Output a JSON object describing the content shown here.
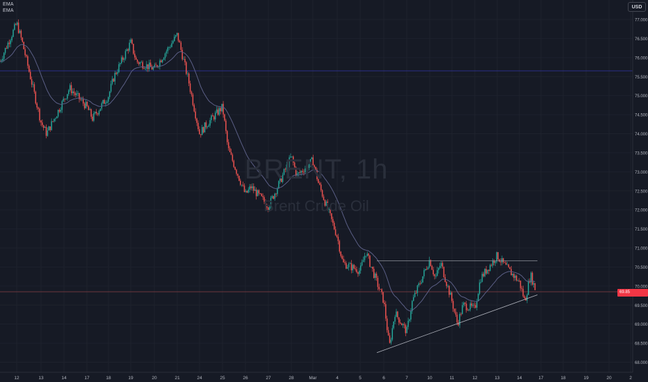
{
  "indicators": [
    "EMA",
    "EMA"
  ],
  "currency": "USD",
  "watermark": {
    "symbol": "BRENT, 1h",
    "description": "Brent Crude Oil"
  },
  "last_price_label": "69.85",
  "colors": {
    "up": "#26a69a",
    "down": "#ef5350",
    "ema": "#5b5f86",
    "hline": "#2b2f87",
    "resistance": "#8f929c",
    "support": "#b2b5be",
    "price_tag": "#f23645"
  },
  "chart_data": {
    "type": "candlestick",
    "title": "",
    "xlabel": "",
    "ylabel": "",
    "y_axis_ticks": [
      "77.000",
      "76.500",
      "76.000",
      "75.500",
      "75.000",
      "74.500",
      "74.000",
      "73.500",
      "73.000",
      "72.500",
      "72.000",
      "71.500",
      "71.000",
      "70.500",
      "70.000",
      "69.500",
      "69.000",
      "68.500",
      "68.000"
    ],
    "ylim": [
      67.85,
      77.3
    ],
    "x_axis_ticks": [
      "12",
      "13",
      "14",
      "17",
      "18",
      "19",
      "20",
      "21",
      "24",
      "25",
      "26",
      "27",
      "28",
      "Mar",
      "4",
      "5",
      "6",
      "7",
      "10",
      "11",
      "12",
      "13",
      "14",
      "17",
      "18",
      "19",
      "20",
      "2"
    ],
    "price_path": [
      {
        "date": "Feb 11",
        "price": 75.9
      },
      {
        "date": "Feb 12",
        "price": 76.9
      },
      {
        "date": "Feb 12",
        "price": 76.4
      },
      {
        "date": "Feb 13",
        "price": 74.3
      },
      {
        "date": "Feb 13",
        "price": 74.0
      },
      {
        "date": "Feb 14",
        "price": 74.9
      },
      {
        "date": "Feb 14",
        "price": 75.2
      },
      {
        "date": "Feb 17",
        "price": 74.7
      },
      {
        "date": "Feb 17",
        "price": 74.4
      },
      {
        "date": "Feb 18",
        "price": 75.0
      },
      {
        "date": "Feb 18",
        "price": 75.5
      },
      {
        "date": "Feb 19",
        "price": 76.4
      },
      {
        "date": "Feb 19",
        "price": 75.9
      },
      {
        "date": "Feb 20",
        "price": 75.7
      },
      {
        "date": "Feb 21",
        "price": 76.6
      },
      {
        "date": "Feb 21",
        "price": 76.0
      },
      {
        "date": "Feb 21",
        "price": 75.4
      },
      {
        "date": "Feb 24",
        "price": 74.0
      },
      {
        "date": "Feb 24",
        "price": 74.2
      },
      {
        "date": "Feb 25",
        "price": 74.7
      },
      {
        "date": "Feb 25",
        "price": 73.6
      },
      {
        "date": "Feb 26",
        "price": 72.4
      },
      {
        "date": "Feb 26",
        "price": 72.6
      },
      {
        "date": "Feb 27",
        "price": 72.1
      },
      {
        "date": "Feb 27",
        "price": 72.4
      },
      {
        "date": "Feb 28",
        "price": 73.4
      },
      {
        "date": "Feb 28",
        "price": 72.9
      },
      {
        "date": "Mar 3",
        "price": 73.3
      },
      {
        "date": "Mar 3",
        "price": 72.7
      },
      {
        "date": "Mar 4",
        "price": 71.3
      },
      {
        "date": "Mar 4",
        "price": 70.6
      },
      {
        "date": "Mar 5",
        "price": 70.4
      },
      {
        "date": "Mar 5",
        "price": 70.9
      },
      {
        "date": "Mar 6",
        "price": 69.6
      },
      {
        "date": "Mar 6",
        "price": 68.4
      },
      {
        "date": "Mar 6",
        "price": 69.3
      },
      {
        "date": "Mar 7",
        "price": 68.8
      },
      {
        "date": "Mar 7",
        "price": 69.6
      },
      {
        "date": "Mar 10",
        "price": 70.7
      },
      {
        "date": "Mar 10",
        "price": 70.2
      },
      {
        "date": "Mar 10",
        "price": 70.6
      },
      {
        "date": "Mar 11",
        "price": 69.6
      },
      {
        "date": "Mar 11",
        "price": 69.0
      },
      {
        "date": "Mar 11",
        "price": 69.5
      },
      {
        "date": "Mar 12",
        "price": 69.4
      },
      {
        "date": "Mar 12",
        "price": 70.2
      },
      {
        "date": "Mar 13",
        "price": 70.8
      },
      {
        "date": "Mar 13",
        "price": 70.6
      },
      {
        "date": "Mar 14",
        "price": 70.1
      },
      {
        "date": "Mar 14",
        "price": 69.6
      },
      {
        "date": "Mar 14",
        "price": 70.3
      },
      {
        "date": "Mar 14",
        "price": 69.85
      }
    ],
    "horizontal_line_price": 75.65,
    "last_price": 69.85,
    "resistance_line": {
      "from": {
        "date": "Mar 6",
        "price": 70.66
      },
      "to": {
        "date": "Mar 14",
        "price": 70.66
      }
    },
    "support_trendline": {
      "from": {
        "date": "Mar 6",
        "price": 68.25
      },
      "to": {
        "date": "Mar 14",
        "price": 69.77
      }
    }
  }
}
